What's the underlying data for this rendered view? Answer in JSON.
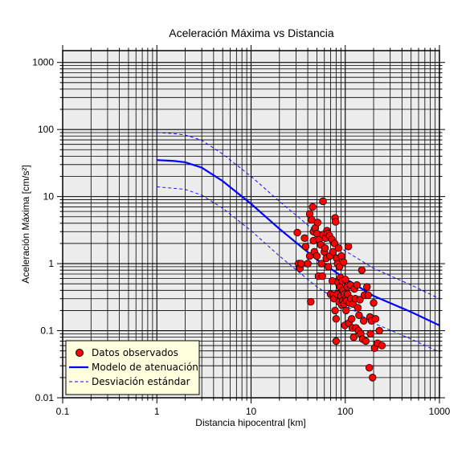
{
  "chart_data": {
    "type": "scatter",
    "title": "Aceleración Máxima vs Distancia",
    "xlabel": "Distancia hipocentral [km]",
    "ylabel": "Aceleración Máxima [cm/s²]",
    "xscale": "log",
    "yscale": "log",
    "xlim": [
      0.1,
      1000
    ],
    "ylim": [
      0.01,
      1500
    ],
    "xticks": [
      "0.1",
      "1",
      "10",
      "100",
      "1000"
    ],
    "yticks": [
      "0.01",
      "0.1",
      "1",
      "10",
      "100",
      "1000"
    ],
    "grid": true,
    "legend_position": "bottom-left",
    "colors": {
      "plot_background": "#ececec",
      "grid": "#000000",
      "points": "#ff0000",
      "model_line": "#0000ff",
      "deviation_line": "#0000ff",
      "legend_background": "#ffffdd"
    },
    "series": [
      {
        "name": "Datos observados",
        "kind": "points",
        "points": [
          [
            31,
            2.9
          ],
          [
            32,
            1.0
          ],
          [
            33,
            0.85
          ],
          [
            34,
            1.0
          ],
          [
            37,
            2.4
          ],
          [
            38,
            1.8
          ],
          [
            40,
            1.0
          ],
          [
            42,
            1.3
          ],
          [
            42,
            5.5
          ],
          [
            43,
            0.27
          ],
          [
            44,
            4.5
          ],
          [
            45,
            7.0
          ],
          [
            46,
            3.0
          ],
          [
            46,
            2.2
          ],
          [
            47,
            1.5
          ],
          [
            48,
            3.4
          ],
          [
            50,
            2.8
          ],
          [
            50,
            1.3
          ],
          [
            51,
            4.1
          ],
          [
            52,
            0.65
          ],
          [
            53,
            2.3
          ],
          [
            55,
            1.9
          ],
          [
            56,
            1.0
          ],
          [
            57,
            0.65
          ],
          [
            58,
            8.5
          ],
          [
            58,
            2.7
          ],
          [
            60,
            1.5
          ],
          [
            61,
            1.7
          ],
          [
            62,
            2.4
          ],
          [
            63,
            1.2
          ],
          [
            64,
            3.1
          ],
          [
            65,
            2.8
          ],
          [
            66,
            0.9
          ],
          [
            68,
            2.6
          ],
          [
            69,
            1.3
          ],
          [
            70,
            0.35
          ],
          [
            72,
            2.3
          ],
          [
            73,
            0.55
          ],
          [
            74,
            1.5
          ],
          [
            75,
            0.34
          ],
          [
            76,
            0.3
          ],
          [
            77,
            2.0
          ],
          [
            78,
            4.8
          ],
          [
            78,
            0.2
          ],
          [
            79,
            4.2
          ],
          [
            80,
            0.15
          ],
          [
            80,
            0.07
          ],
          [
            81,
            1.2
          ],
          [
            82,
            0.35
          ],
          [
            83,
            1.0
          ],
          [
            84,
            0.52
          ],
          [
            85,
            1.7
          ],
          [
            86,
            0.27
          ],
          [
            87,
            0.9
          ],
          [
            88,
            0.45
          ],
          [
            89,
            0.62
          ],
          [
            90,
            0.33
          ],
          [
            91,
            1.3
          ],
          [
            92,
            0.24
          ],
          [
            93,
            0.55
          ],
          [
            94,
            0.28
          ],
          [
            95,
            0.4
          ],
          [
            96,
            1.05
          ],
          [
            97,
            0.25
          ],
          [
            98,
            0.35
          ],
          [
            99,
            0.12
          ],
          [
            100,
            0.58
          ],
          [
            101,
            0.3
          ],
          [
            102,
            0.2
          ],
          [
            103,
            0.28
          ],
          [
            105,
            0.45
          ],
          [
            106,
            0.35
          ],
          [
            108,
            1.8
          ],
          [
            109,
            0.13
          ],
          [
            111,
            0.26
          ],
          [
            113,
            0.48
          ],
          [
            115,
            0.3
          ],
          [
            117,
            0.15
          ],
          [
            119,
            0.11
          ],
          [
            121,
            0.25
          ],
          [
            123,
            0.08
          ],
          [
            125,
            0.42
          ],
          [
            128,
            0.3
          ],
          [
            130,
            0.11
          ],
          [
            133,
            0.48
          ],
          [
            136,
            0.22
          ],
          [
            138,
            0.1
          ],
          [
            140,
            0.17
          ],
          [
            143,
            0.29
          ],
          [
            146,
            0.09
          ],
          [
            150,
            0.8
          ],
          [
            153,
            0.075
          ],
          [
            157,
            0.14
          ],
          [
            160,
            0.34
          ],
          [
            165,
            0.07
          ],
          [
            170,
            0.45
          ],
          [
            175,
            0.34
          ],
          [
            180,
            0.028
          ],
          [
            183,
            0.16
          ],
          [
            185,
            0.09
          ],
          [
            190,
            0.14
          ],
          [
            195,
            0.02
          ],
          [
            200,
            0.26
          ],
          [
            205,
            0.055
          ],
          [
            210,
            0.15
          ],
          [
            220,
            0.065
          ],
          [
            230,
            0.1
          ],
          [
            245,
            0.06
          ]
        ]
      },
      {
        "name": "Modelo de atenuación",
        "kind": "line",
        "x": [
          1,
          1.5,
          2,
          3,
          5,
          10,
          20,
          50,
          100,
          200,
          500,
          1000
        ],
        "y": [
          35,
          34,
          32.5,
          27,
          17,
          7.8,
          3.3,
          1.15,
          0.6,
          0.33,
          0.19,
          0.12
        ]
      },
      {
        "name": "Desviación estándar",
        "kind": "dashed",
        "x": [
          1,
          1.5,
          2,
          3,
          5,
          10,
          20,
          50,
          100,
          200,
          500,
          1000
        ],
        "y": [
          90,
          87,
          83,
          69,
          43,
          20,
          8.5,
          2.9,
          1.55,
          0.85,
          0.48,
          0.3
        ]
      },
      {
        "name": "Desviación estándar (inferior)",
        "kind": "dashed",
        "legend": false,
        "x": [
          1,
          1.5,
          2,
          3,
          5,
          10,
          20,
          50,
          100,
          200,
          500,
          1000
        ],
        "y": [
          14,
          13.3,
          12.8,
          10.5,
          6.7,
          3.1,
          1.3,
          0.45,
          0.24,
          0.13,
          0.075,
          0.048
        ]
      }
    ]
  }
}
